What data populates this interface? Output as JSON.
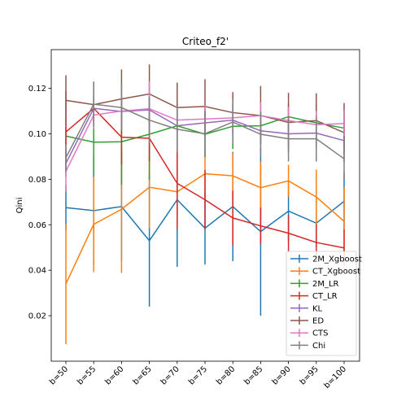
{
  "chart_data": {
    "type": "line",
    "title": "Criteo_f2'",
    "xlabel": "",
    "ylabel": "Qini",
    "categories": [
      "b=50",
      "b=55",
      "b=60",
      "b=65",
      "b=70",
      "b=75",
      "b=80",
      "b=85",
      "b=90",
      "b=95",
      "b=100"
    ],
    "ylim": [
      0.0,
      0.137
    ],
    "yticks": [
      "0.02",
      "0.04",
      "0.06",
      "0.08",
      "0.10",
      "0.12"
    ],
    "ytick_values": [
      0.02,
      0.04,
      0.06,
      0.08,
      0.1,
      0.12
    ],
    "grid": false,
    "legend_position": "bottom-right",
    "error_bars": true,
    "series": [
      {
        "name": "2M_Xgboost",
        "color": "#1f77b4",
        "values": [
          0.0675,
          0.0662,
          0.068,
          0.053,
          0.071,
          0.0585,
          0.068,
          0.057,
          0.066,
          0.0607,
          0.0703
        ],
        "errors": [
          0.01,
          0.024,
          0.024,
          0.029,
          0.0295,
          0.016,
          0.024,
          0.037,
          0.013,
          0.01,
          0.013
        ]
      },
      {
        "name": "CT_Xgboost",
        "color": "#ff7f0e",
        "values": [
          0.034,
          0.0602,
          0.0668,
          0.0765,
          0.0745,
          0.0824,
          0.0815,
          0.0763,
          0.0793,
          0.0722,
          0.0615
        ],
        "errors": [
          0.0265,
          0.021,
          0.028,
          0.018,
          0.012,
          0.01,
          0.01,
          0.0115,
          0.007,
          0.012,
          0.015
        ]
      },
      {
        "name": "2M_LR",
        "color": "#2ca02c",
        "values": [
          0.099,
          0.0963,
          0.0965,
          0.0998,
          0.1035,
          0.0998,
          0.1033,
          0.1035,
          0.1075,
          0.1048,
          0.1025
        ],
        "errors": [
          0.004,
          0.014,
          0.019,
          0.02,
          0.01,
          0.01,
          0.01,
          0.006,
          0.006,
          0.008,
          0.008
        ]
      },
      {
        "name": "CT_LR",
        "color": "#d62728",
        "values": [
          0.1008,
          0.1112,
          0.0985,
          0.098,
          0.0782,
          0.071,
          0.063,
          0.0595,
          0.0563,
          0.0522,
          0.0498
        ],
        "errors": [
          0.018,
          0.006,
          0.012,
          0.01,
          0.02,
          0.013,
          0.012,
          0.008,
          0.008,
          0.008,
          0.008
        ]
      },
      {
        "name": "KL",
        "color": "#9467bd",
        "values": [
          0.087,
          0.1112,
          0.1098,
          0.1105,
          0.1035,
          0.1048,
          0.106,
          0.1013,
          0.1,
          0.1003,
          0.097
        ],
        "errors": [
          0.006,
          0.006,
          0.006,
          0.006,
          0.006,
          0.006,
          0.006,
          0.006,
          0.006,
          0.006,
          0.006
        ]
      },
      {
        "name": "ED",
        "color": "#8c564b",
        "values": [
          0.1147,
          0.1128,
          0.1153,
          0.1175,
          0.1115,
          0.112,
          0.1093,
          0.108,
          0.105,
          0.1058,
          0.1005
        ],
        "errors": [
          0.011,
          0.01,
          0.013,
          0.013,
          0.011,
          0.012,
          0.009,
          0.013,
          0.013,
          0.012,
          0.013
        ]
      },
      {
        "name": "CTS",
        "color": "#e377c2",
        "values": [
          0.0835,
          0.1082,
          0.11,
          0.111,
          0.106,
          0.1065,
          0.107,
          0.108,
          0.1058,
          0.104,
          0.1045
        ],
        "errors": [
          0.009,
          0.006,
          0.006,
          0.012,
          0.006,
          0.006,
          0.006,
          0.006,
          0.006,
          0.006,
          0.006
        ]
      },
      {
        "name": "Chi",
        "color": "#7f7f7f",
        "values": [
          0.0895,
          0.113,
          0.1115,
          0.106,
          0.102,
          0.1,
          0.1052,
          0.0998,
          0.0978,
          0.0978,
          0.089
        ],
        "errors": [
          0.006,
          0.01,
          0.01,
          0.01,
          0.01,
          0.01,
          0.01,
          0.01,
          0.01,
          0.01,
          0.01
        ]
      }
    ]
  }
}
